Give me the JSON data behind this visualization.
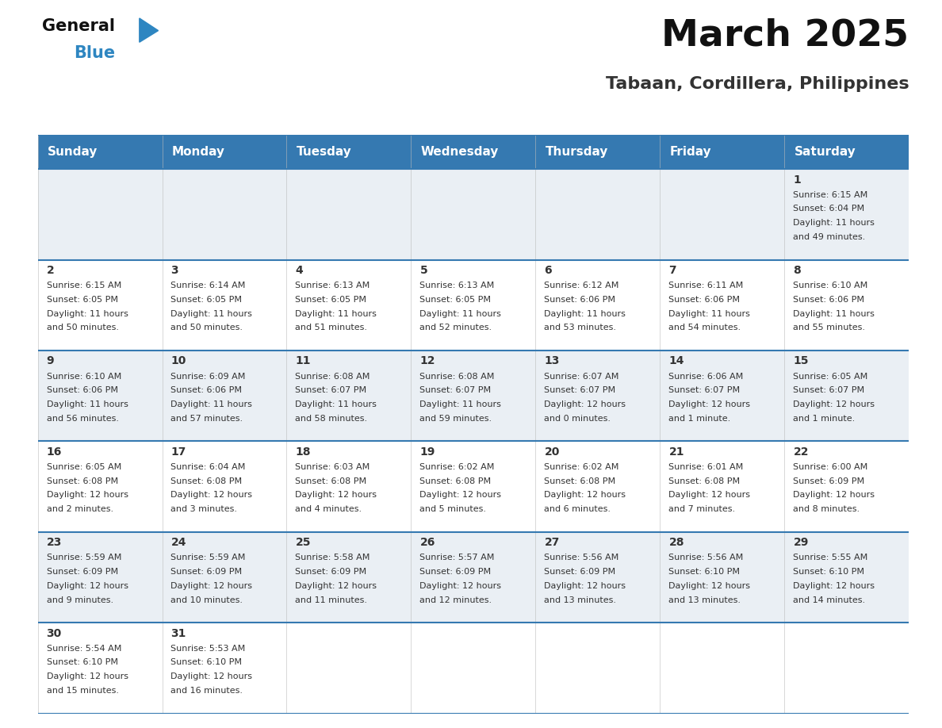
{
  "title": "March 2025",
  "subtitle": "Tabaan, Cordillera, Philippines",
  "header_color": "#3579B1",
  "header_text_color": "#FFFFFF",
  "day_names": [
    "Sunday",
    "Monday",
    "Tuesday",
    "Wednesday",
    "Thursday",
    "Friday",
    "Saturday"
  ],
  "background_color": "#FFFFFF",
  "cell_bg_even": "#EAEFF4",
  "cell_bg_odd": "#FFFFFF",
  "border_color": "#3579B1",
  "text_color": "#333333",
  "logo_text_color": "#111111",
  "logo_blue_color": "#2E86C1",
  "title_fontsize": 34,
  "subtitle_fontsize": 16,
  "header_fontsize": 11,
  "day_num_fontsize": 10,
  "cell_text_fontsize": 8,
  "days": [
    {
      "day": 1,
      "col": 6,
      "row": 0,
      "sunrise": "6:15 AM",
      "sunset": "6:04 PM",
      "daylight_line1": "Daylight: 11 hours",
      "daylight_line2": "and 49 minutes."
    },
    {
      "day": 2,
      "col": 0,
      "row": 1,
      "sunrise": "6:15 AM",
      "sunset": "6:05 PM",
      "daylight_line1": "Daylight: 11 hours",
      "daylight_line2": "and 50 minutes."
    },
    {
      "day": 3,
      "col": 1,
      "row": 1,
      "sunrise": "6:14 AM",
      "sunset": "6:05 PM",
      "daylight_line1": "Daylight: 11 hours",
      "daylight_line2": "and 50 minutes."
    },
    {
      "day": 4,
      "col": 2,
      "row": 1,
      "sunrise": "6:13 AM",
      "sunset": "6:05 PM",
      "daylight_line1": "Daylight: 11 hours",
      "daylight_line2": "and 51 minutes."
    },
    {
      "day": 5,
      "col": 3,
      "row": 1,
      "sunrise": "6:13 AM",
      "sunset": "6:05 PM",
      "daylight_line1": "Daylight: 11 hours",
      "daylight_line2": "and 52 minutes."
    },
    {
      "day": 6,
      "col": 4,
      "row": 1,
      "sunrise": "6:12 AM",
      "sunset": "6:06 PM",
      "daylight_line1": "Daylight: 11 hours",
      "daylight_line2": "and 53 minutes."
    },
    {
      "day": 7,
      "col": 5,
      "row": 1,
      "sunrise": "6:11 AM",
      "sunset": "6:06 PM",
      "daylight_line1": "Daylight: 11 hours",
      "daylight_line2": "and 54 minutes."
    },
    {
      "day": 8,
      "col": 6,
      "row": 1,
      "sunrise": "6:10 AM",
      "sunset": "6:06 PM",
      "daylight_line1": "Daylight: 11 hours",
      "daylight_line2": "and 55 minutes."
    },
    {
      "day": 9,
      "col": 0,
      "row": 2,
      "sunrise": "6:10 AM",
      "sunset": "6:06 PM",
      "daylight_line1": "Daylight: 11 hours",
      "daylight_line2": "and 56 minutes."
    },
    {
      "day": 10,
      "col": 1,
      "row": 2,
      "sunrise": "6:09 AM",
      "sunset": "6:06 PM",
      "daylight_line1": "Daylight: 11 hours",
      "daylight_line2": "and 57 minutes."
    },
    {
      "day": 11,
      "col": 2,
      "row": 2,
      "sunrise": "6:08 AM",
      "sunset": "6:07 PM",
      "daylight_line1": "Daylight: 11 hours",
      "daylight_line2": "and 58 minutes."
    },
    {
      "day": 12,
      "col": 3,
      "row": 2,
      "sunrise": "6:08 AM",
      "sunset": "6:07 PM",
      "daylight_line1": "Daylight: 11 hours",
      "daylight_line2": "and 59 minutes."
    },
    {
      "day": 13,
      "col": 4,
      "row": 2,
      "sunrise": "6:07 AM",
      "sunset": "6:07 PM",
      "daylight_line1": "Daylight: 12 hours",
      "daylight_line2": "and 0 minutes."
    },
    {
      "day": 14,
      "col": 5,
      "row": 2,
      "sunrise": "6:06 AM",
      "sunset": "6:07 PM",
      "daylight_line1": "Daylight: 12 hours",
      "daylight_line2": "and 1 minute."
    },
    {
      "day": 15,
      "col": 6,
      "row": 2,
      "sunrise": "6:05 AM",
      "sunset": "6:07 PM",
      "daylight_line1": "Daylight: 12 hours",
      "daylight_line2": "and 1 minute."
    },
    {
      "day": 16,
      "col": 0,
      "row": 3,
      "sunrise": "6:05 AM",
      "sunset": "6:08 PM",
      "daylight_line1": "Daylight: 12 hours",
      "daylight_line2": "and 2 minutes."
    },
    {
      "day": 17,
      "col": 1,
      "row": 3,
      "sunrise": "6:04 AM",
      "sunset": "6:08 PM",
      "daylight_line1": "Daylight: 12 hours",
      "daylight_line2": "and 3 minutes."
    },
    {
      "day": 18,
      "col": 2,
      "row": 3,
      "sunrise": "6:03 AM",
      "sunset": "6:08 PM",
      "daylight_line1": "Daylight: 12 hours",
      "daylight_line2": "and 4 minutes."
    },
    {
      "day": 19,
      "col": 3,
      "row": 3,
      "sunrise": "6:02 AM",
      "sunset": "6:08 PM",
      "daylight_line1": "Daylight: 12 hours",
      "daylight_line2": "and 5 minutes."
    },
    {
      "day": 20,
      "col": 4,
      "row": 3,
      "sunrise": "6:02 AM",
      "sunset": "6:08 PM",
      "daylight_line1": "Daylight: 12 hours",
      "daylight_line2": "and 6 minutes."
    },
    {
      "day": 21,
      "col": 5,
      "row": 3,
      "sunrise": "6:01 AM",
      "sunset": "6:08 PM",
      "daylight_line1": "Daylight: 12 hours",
      "daylight_line2": "and 7 minutes."
    },
    {
      "day": 22,
      "col": 6,
      "row": 3,
      "sunrise": "6:00 AM",
      "sunset": "6:09 PM",
      "daylight_line1": "Daylight: 12 hours",
      "daylight_line2": "and 8 minutes."
    },
    {
      "day": 23,
      "col": 0,
      "row": 4,
      "sunrise": "5:59 AM",
      "sunset": "6:09 PM",
      "daylight_line1": "Daylight: 12 hours",
      "daylight_line2": "and 9 minutes."
    },
    {
      "day": 24,
      "col": 1,
      "row": 4,
      "sunrise": "5:59 AM",
      "sunset": "6:09 PM",
      "daylight_line1": "Daylight: 12 hours",
      "daylight_line2": "and 10 minutes."
    },
    {
      "day": 25,
      "col": 2,
      "row": 4,
      "sunrise": "5:58 AM",
      "sunset": "6:09 PM",
      "daylight_line1": "Daylight: 12 hours",
      "daylight_line2": "and 11 minutes."
    },
    {
      "day": 26,
      "col": 3,
      "row": 4,
      "sunrise": "5:57 AM",
      "sunset": "6:09 PM",
      "daylight_line1": "Daylight: 12 hours",
      "daylight_line2": "and 12 minutes."
    },
    {
      "day": 27,
      "col": 4,
      "row": 4,
      "sunrise": "5:56 AM",
      "sunset": "6:09 PM",
      "daylight_line1": "Daylight: 12 hours",
      "daylight_line2": "and 13 minutes."
    },
    {
      "day": 28,
      "col": 5,
      "row": 4,
      "sunrise": "5:56 AM",
      "sunset": "6:10 PM",
      "daylight_line1": "Daylight: 12 hours",
      "daylight_line2": "and 13 minutes."
    },
    {
      "day": 29,
      "col": 6,
      "row": 4,
      "sunrise": "5:55 AM",
      "sunset": "6:10 PM",
      "daylight_line1": "Daylight: 12 hours",
      "daylight_line2": "and 14 minutes."
    },
    {
      "day": 30,
      "col": 0,
      "row": 5,
      "sunrise": "5:54 AM",
      "sunset": "6:10 PM",
      "daylight_line1": "Daylight: 12 hours",
      "daylight_line2": "and 15 minutes."
    },
    {
      "day": 31,
      "col": 1,
      "row": 5,
      "sunrise": "5:53 AM",
      "sunset": "6:10 PM",
      "daylight_line1": "Daylight: 12 hours",
      "daylight_line2": "and 16 minutes."
    }
  ]
}
